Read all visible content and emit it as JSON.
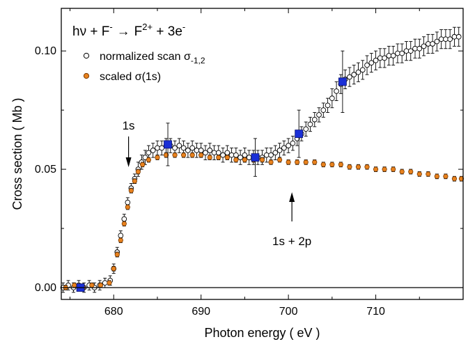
{
  "chart_data": {
    "type": "scatter",
    "title_parts": {
      "reactant_a": "hν + F",
      "reactant_a_sup": "-",
      "arrow": "→",
      "product_a": "F",
      "product_a_sup": "2+",
      "product_b": " + 3e",
      "product_b_sup": "-"
    },
    "xlabel": "Photon energy  ( eV )",
    "ylabel": "Cross section  ( Mb )",
    "xlim": [
      674,
      720
    ],
    "ylim": [
      -0.005,
      0.118
    ],
    "xticks": [
      {
        "v": 680,
        "label": "680"
      },
      {
        "v": 690,
        "label": "690"
      },
      {
        "v": 700,
        "label": "700"
      },
      {
        "v": 710,
        "label": "710"
      }
    ],
    "yticks": [
      {
        "v": 0.0,
        "label": "0.00"
      },
      {
        "v": 0.05,
        "label": "0.05"
      },
      {
        "v": 0.1,
        "label": "0.10"
      }
    ],
    "grid": false,
    "legend_position": "top-left",
    "legend": [
      {
        "marker": "open-circle",
        "text": "normalized scan σ",
        "sub": "-1,2"
      },
      {
        "marker": "orange-circle",
        "text": "scaled σ(1s)"
      }
    ],
    "annotations": [
      {
        "text": "1s",
        "x": 681.7,
        "arrow": "down"
      },
      {
        "text": "1s + 2p",
        "x": 700.4,
        "arrow": "up"
      }
    ],
    "colors": {
      "open": "#000000",
      "scaled_fill": "#e8821e",
      "scaled_edge": "#7a3a00",
      "blue": "#1a2fd6",
      "blue_edge": "#0a1270"
    },
    "series": [
      {
        "name": "normalized scan σ-1,2",
        "marker": "open-circle",
        "x": [
          674.2,
          674.8,
          675.4,
          676.0,
          676.6,
          677.2,
          677.8,
          678.4,
          679.0,
          679.6,
          680.0,
          680.4,
          680.8,
          681.2,
          681.6,
          682.0,
          682.4,
          682.8,
          683.2,
          683.6,
          684.0,
          684.5,
          685.0,
          685.5,
          686.0,
          686.5,
          687.0,
          687.5,
          688.0,
          688.5,
          689.0,
          689.5,
          690.0,
          690.5,
          691.0,
          691.5,
          692.0,
          692.5,
          693.0,
          693.5,
          694.0,
          694.5,
          695.0,
          695.5,
          696.0,
          696.5,
          697.0,
          697.5,
          698.0,
          698.5,
          699.0,
          699.5,
          700.0,
          700.5,
          701.0,
          701.5,
          702.0,
          702.5,
          703.0,
          703.5,
          704.0,
          704.5,
          705.0,
          705.5,
          706.0,
          706.5,
          707.0,
          707.5,
          708.0,
          708.5,
          709.0,
          709.5,
          710.0,
          710.5,
          711.0,
          711.5,
          712.0,
          712.5,
          713.0,
          713.5,
          714.0,
          714.5,
          715.0,
          715.5,
          716.0,
          716.5,
          717.0,
          717.5,
          718.0,
          718.5,
          719.0,
          719.5
        ],
        "y": [
          0.0,
          0.001,
          0.0,
          0.001,
          0.0,
          0.001,
          0.0,
          0.001,
          0.002,
          0.003,
          0.008,
          0.015,
          0.022,
          0.029,
          0.036,
          0.042,
          0.046,
          0.05,
          0.053,
          0.055,
          0.057,
          0.058,
          0.059,
          0.059,
          0.06,
          0.06,
          0.059,
          0.06,
          0.059,
          0.058,
          0.059,
          0.058,
          0.058,
          0.057,
          0.058,
          0.057,
          0.057,
          0.056,
          0.057,
          0.056,
          0.056,
          0.055,
          0.056,
          0.055,
          0.055,
          0.055,
          0.055,
          0.056,
          0.056,
          0.057,
          0.058,
          0.059,
          0.06,
          0.061,
          0.063,
          0.065,
          0.067,
          0.069,
          0.071,
          0.073,
          0.075,
          0.077,
          0.08,
          0.083,
          0.086,
          0.088,
          0.089,
          0.09,
          0.091,
          0.092,
          0.094,
          0.095,
          0.096,
          0.097,
          0.097,
          0.098,
          0.098,
          0.099,
          0.099,
          0.1,
          0.1,
          0.101,
          0.101,
          0.102,
          0.103,
          0.103,
          0.104,
          0.105,
          0.105,
          0.105,
          0.106,
          0.106
        ],
        "err": [
          0.002,
          0.002,
          0.002,
          0.002,
          0.002,
          0.002,
          0.002,
          0.002,
          0.002,
          0.002,
          0.002,
          0.002,
          0.002,
          0.002,
          0.002,
          0.002,
          0.002,
          0.003,
          0.003,
          0.003,
          0.003,
          0.003,
          0.003,
          0.003,
          0.003,
          0.003,
          0.003,
          0.003,
          0.003,
          0.003,
          0.003,
          0.003,
          0.003,
          0.003,
          0.003,
          0.003,
          0.003,
          0.003,
          0.003,
          0.003,
          0.003,
          0.003,
          0.003,
          0.003,
          0.003,
          0.003,
          0.003,
          0.003,
          0.003,
          0.003,
          0.003,
          0.003,
          0.003,
          0.003,
          0.003,
          0.003,
          0.003,
          0.003,
          0.003,
          0.003,
          0.003,
          0.003,
          0.004,
          0.004,
          0.004,
          0.004,
          0.004,
          0.004,
          0.004,
          0.004,
          0.004,
          0.004,
          0.004,
          0.004,
          0.004,
          0.004,
          0.004,
          0.004,
          0.004,
          0.004,
          0.004,
          0.004,
          0.004,
          0.004,
          0.004,
          0.004,
          0.004,
          0.004,
          0.004,
          0.004,
          0.004,
          0.004
        ]
      },
      {
        "name": "scaled σ(1s)",
        "marker": "orange-circle",
        "x": [
          674.5,
          675.5,
          676.5,
          677.5,
          678.5,
          679.5,
          680.0,
          680.4,
          680.8,
          681.2,
          681.6,
          682.0,
          682.4,
          682.8,
          683.3,
          684.0,
          685.0,
          686.0,
          687.0,
          688.0,
          689.0,
          690.0,
          691.0,
          692.0,
          693.0,
          694.0,
          695.0,
          696.0,
          697.0,
          698.0,
          699.0,
          700.0,
          701.0,
          702.0,
          703.0,
          704.0,
          705.0,
          706.0,
          707.0,
          708.0,
          709.0,
          710.0,
          711.0,
          712.0,
          713.0,
          714.0,
          715.0,
          716.0,
          717.0,
          718.0,
          719.0,
          719.8
        ],
        "y": [
          0.0,
          0.001,
          0.0,
          0.001,
          0.001,
          0.002,
          0.008,
          0.014,
          0.02,
          0.027,
          0.034,
          0.041,
          0.045,
          0.049,
          0.052,
          0.054,
          0.055,
          0.056,
          0.056,
          0.056,
          0.056,
          0.056,
          0.055,
          0.055,
          0.055,
          0.054,
          0.054,
          0.054,
          0.054,
          0.053,
          0.054,
          0.053,
          0.053,
          0.053,
          0.053,
          0.052,
          0.052,
          0.052,
          0.051,
          0.051,
          0.051,
          0.05,
          0.05,
          0.05,
          0.049,
          0.049,
          0.048,
          0.048,
          0.047,
          0.047,
          0.046,
          0.046
        ],
        "err": [
          0.001,
          0.001,
          0.001,
          0.001,
          0.001,
          0.001,
          0.001,
          0.001,
          0.001,
          0.001,
          0.001,
          0.001,
          0.001,
          0.001,
          0.001,
          0.001,
          0.001,
          0.001,
          0.001,
          0.001,
          0.001,
          0.001,
          0.001,
          0.001,
          0.001,
          0.001,
          0.001,
          0.001,
          0.001,
          0.001,
          0.001,
          0.001,
          0.001,
          0.001,
          0.001,
          0.001,
          0.001,
          0.001,
          0.001,
          0.001,
          0.001,
          0.001,
          0.001,
          0.001,
          0.001,
          0.001,
          0.001,
          0.001,
          0.001,
          0.001,
          0.001,
          0.001
        ]
      },
      {
        "marker": "blue-square",
        "x": [
          676.2,
          686.2,
          696.2,
          701.2,
          706.2
        ],
        "y": [
          0.0,
          0.0605,
          0.055,
          0.065,
          0.087
        ],
        "err": [
          0.0,
          0.009,
          0.008,
          0.01,
          0.013
        ]
      }
    ]
  }
}
